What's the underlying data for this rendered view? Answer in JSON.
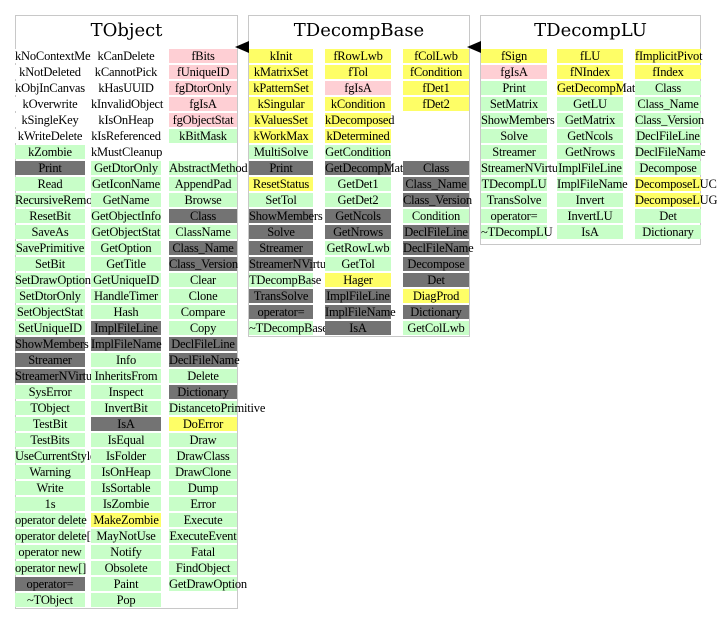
{
  "colors": {
    "pink": "#fecfd4",
    "yellow": "#fefe66",
    "green": "#c8fec8",
    "gray": "#737373"
  },
  "panels": [
    {
      "title": "TObject",
      "columns": [
        [
          {
            "t": "kNoContextMenu",
            "c": "white"
          },
          {
            "t": "kNotDeleted",
            "c": "white"
          },
          {
            "t": "kObjInCanvas",
            "c": "white"
          },
          {
            "t": "kOverwrite",
            "c": "white"
          },
          {
            "t": "kSingleKey",
            "c": "white"
          },
          {
            "t": "kWriteDelete",
            "c": "white"
          },
          {
            "t": "kZombie",
            "c": "green"
          },
          {
            "t": "Print",
            "c": "gray"
          },
          {
            "t": "Read",
            "c": "green"
          },
          {
            "t": "RecursiveRemove",
            "c": "green"
          },
          {
            "t": "ResetBit",
            "c": "green"
          },
          {
            "t": "SaveAs",
            "c": "green"
          },
          {
            "t": "SavePrimitive",
            "c": "green"
          },
          {
            "t": "SetBit",
            "c": "green"
          },
          {
            "t": "SetDrawOption",
            "c": "green"
          },
          {
            "t": "SetDtorOnly",
            "c": "green"
          },
          {
            "t": "SetObjectStat",
            "c": "green"
          },
          {
            "t": "SetUniqueID",
            "c": "green"
          },
          {
            "t": "ShowMembers",
            "c": "gray"
          },
          {
            "t": "Streamer",
            "c": "gray"
          },
          {
            "t": "StreamerNVirtual",
            "c": "gray"
          },
          {
            "t": "SysError",
            "c": "green"
          },
          {
            "t": "TObject",
            "c": "green"
          },
          {
            "t": "TestBit",
            "c": "green"
          },
          {
            "t": "TestBits",
            "c": "green"
          },
          {
            "t": "UseCurrentStyle",
            "c": "green"
          },
          {
            "t": "Warning",
            "c": "green"
          },
          {
            "t": "Write",
            "c": "green"
          },
          {
            "t": "1s",
            "c": "green"
          },
          {
            "t": "operator delete",
            "c": "green"
          },
          {
            "t": "operator delete[]",
            "c": "green"
          },
          {
            "t": "operator new",
            "c": "green"
          },
          {
            "t": "operator new[]",
            "c": "green"
          },
          {
            "t": "operator=",
            "c": "gray"
          },
          {
            "t": "~TObject",
            "c": "green"
          }
        ],
        [
          {
            "t": "kCanDelete",
            "c": "white"
          },
          {
            "t": "kCannotPick",
            "c": "white"
          },
          {
            "t": "kHasUUID",
            "c": "white"
          },
          {
            "t": "kInvalidObject",
            "c": "white"
          },
          {
            "t": "kIsOnHeap",
            "c": "white"
          },
          {
            "t": "kIsReferenced",
            "c": "white"
          },
          {
            "t": "kMustCleanup",
            "c": "white"
          },
          {
            "t": "GetDtorOnly",
            "c": "green"
          },
          {
            "t": "GetIconName",
            "c": "green"
          },
          {
            "t": "GetName",
            "c": "green"
          },
          {
            "t": "GetObjectInfo",
            "c": "green"
          },
          {
            "t": "GetObjectStat",
            "c": "green"
          },
          {
            "t": "GetOption",
            "c": "green"
          },
          {
            "t": "GetTitle",
            "c": "green"
          },
          {
            "t": "GetUniqueID",
            "c": "green"
          },
          {
            "t": "HandleTimer",
            "c": "green"
          },
          {
            "t": "Hash",
            "c": "green"
          },
          {
            "t": "ImplFileLine",
            "c": "gray"
          },
          {
            "t": "ImplFileName",
            "c": "gray"
          },
          {
            "t": "Info",
            "c": "green"
          },
          {
            "t": "InheritsFrom",
            "c": "green"
          },
          {
            "t": "Inspect",
            "c": "green"
          },
          {
            "t": "InvertBit",
            "c": "green"
          },
          {
            "t": "IsA",
            "c": "gray"
          },
          {
            "t": "IsEqual",
            "c": "green"
          },
          {
            "t": "IsFolder",
            "c": "green"
          },
          {
            "t": "IsOnHeap",
            "c": "green"
          },
          {
            "t": "IsSortable",
            "c": "green"
          },
          {
            "t": "IsZombie",
            "c": "green"
          },
          {
            "t": "MakeZombie",
            "c": "yellow"
          },
          {
            "t": "MayNotUse",
            "c": "green"
          },
          {
            "t": "Notify",
            "c": "green"
          },
          {
            "t": "Obsolete",
            "c": "green"
          },
          {
            "t": "Paint",
            "c": "green"
          },
          {
            "t": "Pop",
            "c": "green"
          }
        ],
        [
          {
            "t": "fBits",
            "c": "pink"
          },
          {
            "t": "fUniqueID",
            "c": "pink"
          },
          {
            "t": "fgDtorOnly",
            "c": "pink"
          },
          {
            "t": "fgIsA",
            "c": "pink"
          },
          {
            "t": "fgObjectStat",
            "c": "pink"
          },
          {
            "t": "kBitMask",
            "c": "green"
          },
          {
            "t": "",
            "c": "white"
          },
          {
            "t": "AbstractMethod",
            "c": "green"
          },
          {
            "t": "AppendPad",
            "c": "green"
          },
          {
            "t": "Browse",
            "c": "green"
          },
          {
            "t": "Class",
            "c": "gray"
          },
          {
            "t": "ClassName",
            "c": "green"
          },
          {
            "t": "Class_Name",
            "c": "gray"
          },
          {
            "t": "Class_Version",
            "c": "gray"
          },
          {
            "t": "Clear",
            "c": "green"
          },
          {
            "t": "Clone",
            "c": "green"
          },
          {
            "t": "Compare",
            "c": "green"
          },
          {
            "t": "Copy",
            "c": "green"
          },
          {
            "t": "DeclFileLine",
            "c": "gray"
          },
          {
            "t": "DeclFileName",
            "c": "gray"
          },
          {
            "t": "Delete",
            "c": "green"
          },
          {
            "t": "Dictionary",
            "c": "gray"
          },
          {
            "t": "DistancetoPrimitive",
            "c": "green"
          },
          {
            "t": "DoError",
            "c": "yellow"
          },
          {
            "t": "Draw",
            "c": "green"
          },
          {
            "t": "DrawClass",
            "c": "green"
          },
          {
            "t": "DrawClone",
            "c": "green"
          },
          {
            "t": "Dump",
            "c": "green"
          },
          {
            "t": "Error",
            "c": "green"
          },
          {
            "t": "Execute",
            "c": "green"
          },
          {
            "t": "ExecuteEvent",
            "c": "green"
          },
          {
            "t": "Fatal",
            "c": "green"
          },
          {
            "t": "FindObject",
            "c": "green"
          },
          {
            "t": "GetDrawOption",
            "c": "green"
          }
        ]
      ]
    },
    {
      "title": "TDecompBase",
      "columns": [
        [
          {
            "t": "kInit",
            "c": "yellow"
          },
          {
            "t": "kMatrixSet",
            "c": "yellow"
          },
          {
            "t": "kPatternSet",
            "c": "yellow"
          },
          {
            "t": "kSingular",
            "c": "yellow"
          },
          {
            "t": "kValuesSet",
            "c": "yellow"
          },
          {
            "t": "kWorkMax",
            "c": "yellow"
          },
          {
            "t": "MultiSolve",
            "c": "green"
          },
          {
            "t": "Print",
            "c": "gray"
          },
          {
            "t": "ResetStatus",
            "c": "yellow"
          },
          {
            "t": "SetTol",
            "c": "green"
          },
          {
            "t": "ShowMembers",
            "c": "gray"
          },
          {
            "t": "Solve",
            "c": "gray"
          },
          {
            "t": "Streamer",
            "c": "gray"
          },
          {
            "t": "StreamerNVirtual",
            "c": "gray"
          },
          {
            "t": "TDecompBase",
            "c": "green"
          },
          {
            "t": "TransSolve",
            "c": "gray"
          },
          {
            "t": "operator=",
            "c": "gray"
          },
          {
            "t": "~TDecompBase",
            "c": "green"
          }
        ],
        [
          {
            "t": "fRowLwb",
            "c": "yellow"
          },
          {
            "t": "fTol",
            "c": "yellow"
          },
          {
            "t": "fgIsA",
            "c": "pink"
          },
          {
            "t": "kCondition",
            "c": "yellow"
          },
          {
            "t": "kDecomposed",
            "c": "yellow"
          },
          {
            "t": "kDetermined",
            "c": "yellow"
          },
          {
            "t": "GetCondition",
            "c": "green"
          },
          {
            "t": "GetDecompMatrix",
            "c": "gray"
          },
          {
            "t": "GetDet1",
            "c": "green"
          },
          {
            "t": "GetDet2",
            "c": "green"
          },
          {
            "t": "GetNcols",
            "c": "gray"
          },
          {
            "t": "GetNrows",
            "c": "gray"
          },
          {
            "t": "GetRowLwb",
            "c": "green"
          },
          {
            "t": "GetTol",
            "c": "green"
          },
          {
            "t": "Hager",
            "c": "yellow"
          },
          {
            "t": "ImplFileLine",
            "c": "gray"
          },
          {
            "t": "ImplFileName",
            "c": "gray"
          },
          {
            "t": "IsA",
            "c": "gray"
          }
        ],
        [
          {
            "t": "fColLwb",
            "c": "yellow"
          },
          {
            "t": "fCondition",
            "c": "yellow"
          },
          {
            "t": "fDet1",
            "c": "yellow"
          },
          {
            "t": "fDet2",
            "c": "yellow"
          },
          {
            "t": "",
            "c": "white"
          },
          {
            "t": "",
            "c": "white"
          },
          {
            "t": "",
            "c": "white"
          },
          {
            "t": "Class",
            "c": "gray"
          },
          {
            "t": "Class_Name",
            "c": "gray"
          },
          {
            "t": "Class_Version",
            "c": "gray"
          },
          {
            "t": "Condition",
            "c": "green"
          },
          {
            "t": "DeclFileLine",
            "c": "gray"
          },
          {
            "t": "DeclFileName",
            "c": "gray"
          },
          {
            "t": "Decompose",
            "c": "gray"
          },
          {
            "t": "Det",
            "c": "gray"
          },
          {
            "t": "DiagProd",
            "c": "yellow"
          },
          {
            "t": "Dictionary",
            "c": "gray"
          },
          {
            "t": "GetColLwb",
            "c": "green"
          }
        ]
      ]
    },
    {
      "title": "TDecompLU",
      "columns": [
        [
          {
            "t": "fSign",
            "c": "yellow"
          },
          {
            "t": "fgIsA",
            "c": "pink"
          },
          {
            "t": "Print",
            "c": "green"
          },
          {
            "t": "SetMatrix",
            "c": "green"
          },
          {
            "t": "ShowMembers",
            "c": "green"
          },
          {
            "t": "Solve",
            "c": "green"
          },
          {
            "t": "Streamer",
            "c": "green"
          },
          {
            "t": "StreamerNVirtual",
            "c": "green"
          },
          {
            "t": "TDecompLU",
            "c": "green"
          },
          {
            "t": "TransSolve",
            "c": "green"
          },
          {
            "t": "operator=",
            "c": "green"
          },
          {
            "t": "~TDecompLU",
            "c": "green"
          }
        ],
        [
          {
            "t": "fLU",
            "c": "yellow"
          },
          {
            "t": "fNIndex",
            "c": "yellow"
          },
          {
            "t": "GetDecompMatrix",
            "c": "yellow"
          },
          {
            "t": "GetLU",
            "c": "green"
          },
          {
            "t": "GetMatrix",
            "c": "green"
          },
          {
            "t": "GetNcols",
            "c": "green"
          },
          {
            "t": "GetNrows",
            "c": "green"
          },
          {
            "t": "ImplFileLine",
            "c": "green"
          },
          {
            "t": "ImplFileName",
            "c": "green"
          },
          {
            "t": "Invert",
            "c": "green"
          },
          {
            "t": "InvertLU",
            "c": "green"
          },
          {
            "t": "IsA",
            "c": "green"
          }
        ],
        [
          {
            "t": "fImplicitPivot",
            "c": "yellow"
          },
          {
            "t": "fIndex",
            "c": "yellow"
          },
          {
            "t": "Class",
            "c": "green"
          },
          {
            "t": "Class_Name",
            "c": "green"
          },
          {
            "t": "Class_Version",
            "c": "green"
          },
          {
            "t": "DeclFileLine",
            "c": "green"
          },
          {
            "t": "DeclFileName",
            "c": "green"
          },
          {
            "t": "Decompose",
            "c": "green"
          },
          {
            "t": "DecomposeLUCrout",
            "c": "yellow"
          },
          {
            "t": "DecomposeLUGauss",
            "c": "yellow"
          },
          {
            "t": "Det",
            "c": "green"
          },
          {
            "t": "Dictionary",
            "c": "green"
          }
        ]
      ]
    }
  ]
}
